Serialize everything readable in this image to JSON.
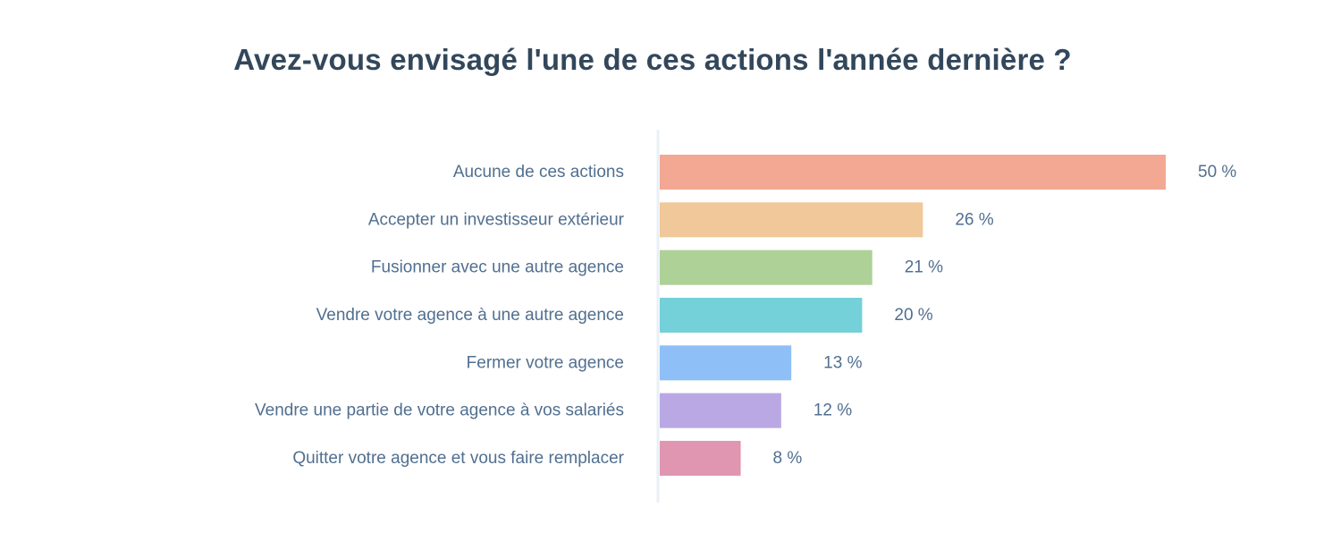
{
  "chart_data": {
    "type": "bar",
    "orientation": "horizontal",
    "title": "Avez-vous envisagé l'une de ces actions l'année dernière ?",
    "xlabel": "",
    "ylabel": "",
    "categories": [
      "Aucune de ces actions",
      "Accepter un investisseur extérieur",
      "Fusionner avec une autre agence",
      "Vendre votre agence à une autre agence",
      "Fermer votre agence",
      "Vendre une partie de votre agence à vos salariés",
      "Quitter votre agence et vous faire remplacer"
    ],
    "values": [
      50,
      26,
      21,
      20,
      13,
      12,
      8
    ],
    "value_labels": [
      "50 %",
      "26 %",
      "21 %",
      "20 %",
      "13 %",
      "12 %",
      "8 %"
    ],
    "bar_colors": [
      "#f2a893",
      "#f0c899",
      "#aed198",
      "#74d0d9",
      "#8ebff6",
      "#b9a8e4",
      "#e096b0"
    ],
    "xlim": [
      0,
      50
    ],
    "grid": false,
    "legend": "none"
  }
}
